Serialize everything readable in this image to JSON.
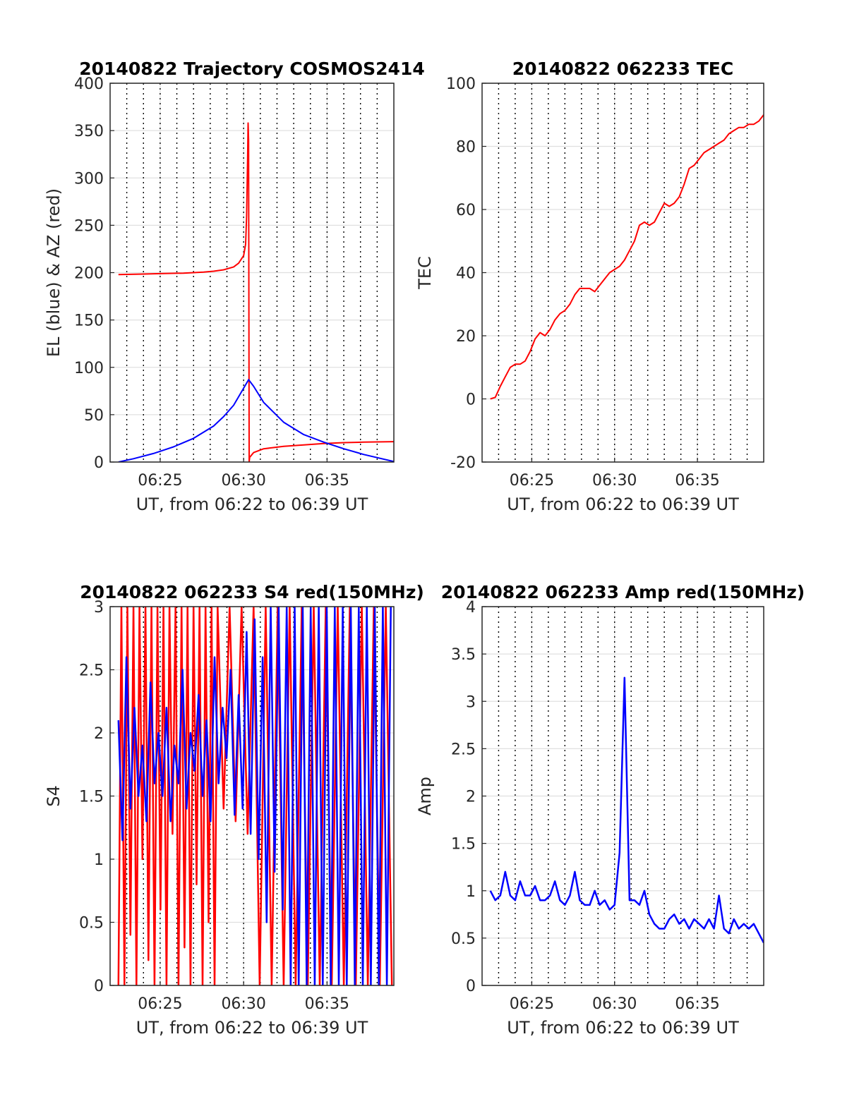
{
  "chart_data": [
    {
      "type": "line",
      "title": "20140822 Trajectory COSMOS2414",
      "xlabel": "UT, from 06:22 to 06:39 UT",
      "ylabel": "EL (blue) & AZ (red)",
      "xlim": [
        6.3667,
        6.65
      ],
      "ylim": [
        0,
        400
      ],
      "xticks": [
        6.4167,
        6.5,
        6.5833
      ],
      "xtick_labels": [
        "06:25",
        "06:30",
        "06:35"
      ],
      "yticks": [
        0,
        50,
        100,
        150,
        200,
        250,
        300,
        350,
        400
      ],
      "ytick_labels": [
        "0",
        "50",
        "100",
        "150",
        "200",
        "250",
        "300",
        "350",
        "400"
      ],
      "grid": true,
      "series": [
        {
          "color": "#ff0000",
          "x": [
            6.375,
            6.4,
            6.42,
            6.44,
            6.46,
            6.47,
            6.48,
            6.49,
            6.495,
            6.5,
            6.502,
            6.503,
            6.504,
            6.5045,
            6.505,
            6.5055,
            6.506,
            6.51,
            6.52,
            6.54,
            6.56,
            6.58,
            6.6,
            6.62,
            6.65
          ],
          "y": [
            198,
            198.5,
            199,
            199.5,
            200.5,
            201.5,
            203,
            206,
            210,
            218,
            230,
            260,
            320,
            358,
            340,
            0,
            5,
            10,
            14,
            16.5,
            18,
            19.5,
            20.5,
            21,
            21.5
          ]
        },
        {
          "color": "#0000ff",
          "x": [
            6.375,
            6.39,
            6.41,
            6.43,
            6.45,
            6.47,
            6.48,
            6.49,
            6.5,
            6.505,
            6.51,
            6.52,
            6.54,
            6.56,
            6.58,
            6.6,
            6.62,
            6.65
          ],
          "y": [
            0,
            3.5,
            9,
            16,
            25,
            38,
            48,
            60,
            78,
            87,
            80,
            63,
            42,
            29,
            21,
            14,
            8,
            0.5
          ]
        }
      ]
    },
    {
      "type": "line",
      "title": "20140822 062233 TEC",
      "xlabel": "UT, from 06:22 to 06:39 UT",
      "ylabel": "TEC",
      "xlim": [
        6.3667,
        6.65
      ],
      "ylim": [
        -20,
        100
      ],
      "xticks": [
        6.4167,
        6.5,
        6.5833
      ],
      "xtick_labels": [
        "06:25",
        "06:30",
        "06:35"
      ],
      "yticks": [
        -20,
        0,
        20,
        40,
        60,
        80,
        100
      ],
      "ytick_labels": [
        "-20",
        "0",
        "20",
        "40",
        "60",
        "80",
        "100"
      ],
      "grid": true,
      "series": [
        {
          "color": "#ff0000",
          "x": [
            6.375,
            6.38,
            6.385,
            6.39,
            6.395,
            6.4,
            6.405,
            6.41,
            6.415,
            6.42,
            6.425,
            6.43,
            6.435,
            6.44,
            6.445,
            6.45,
            6.455,
            6.46,
            6.465,
            6.47,
            6.475,
            6.48,
            6.485,
            6.49,
            6.495,
            6.5,
            6.505,
            6.51,
            6.515,
            6.52,
            6.525,
            6.53,
            6.535,
            6.54,
            6.545,
            6.55,
            6.555,
            6.56,
            6.565,
            6.57,
            6.575,
            6.58,
            6.585,
            6.59,
            6.595,
            6.6,
            6.605,
            6.61,
            6.615,
            6.62,
            6.625,
            6.63,
            6.635,
            6.64,
            6.645,
            6.65
          ],
          "y": [
            0,
            0.5,
            4,
            7,
            10,
            11,
            11,
            12,
            15,
            19,
            21,
            20,
            22,
            25,
            27,
            28,
            30,
            33,
            35,
            35,
            35,
            34,
            36,
            38,
            40,
            41,
            42,
            44,
            47,
            50,
            55,
            56,
            55,
            56,
            59,
            62,
            61,
            62,
            64,
            68,
            73,
            74,
            76,
            78,
            79,
            80,
            81,
            82,
            84,
            85,
            86,
            86,
            87,
            87,
            88,
            90
          ]
        }
      ]
    },
    {
      "type": "line",
      "title": "20140822 062233 S4 red(150MHz)",
      "xlabel": "UT, from 06:22 to 06:39 UT",
      "ylabel": "S4",
      "xlim": [
        6.3667,
        6.65
      ],
      "ylim": [
        0,
        3
      ],
      "xticks": [
        6.4167,
        6.5,
        6.5833
      ],
      "xtick_labels": [
        "06:25",
        "06:30",
        "06:35"
      ],
      "yticks": [
        0,
        0.5,
        1,
        1.5,
        2,
        2.5,
        3
      ],
      "ytick_labels": [
        "0",
        "0.5",
        "1",
        "1.5",
        "2",
        "2.5",
        "3"
      ],
      "grid": true,
      "series": [
        {
          "color": "#ff0000",
          "x": [
            6.375,
            6.378,
            6.381,
            6.384,
            6.387,
            6.39,
            6.393,
            6.396,
            6.399,
            6.402,
            6.405,
            6.408,
            6.411,
            6.414,
            6.417,
            6.42,
            6.423,
            6.426,
            6.429,
            6.432,
            6.435,
            6.438,
            6.441,
            6.444,
            6.447,
            6.45,
            6.453,
            6.456,
            6.459,
            6.462,
            6.465,
            6.468,
            6.471,
            6.474,
            6.48,
            6.486,
            6.492,
            6.498,
            6.504,
            6.51,
            6.516,
            6.522,
            6.528,
            6.534,
            6.54,
            6.546,
            6.552,
            6.558,
            6.564,
            6.57,
            6.576,
            6.582,
            6.588,
            6.594,
            6.6,
            6.606,
            6.612,
            6.618,
            6.624,
            6.63,
            6.636,
            6.642,
            6.648
          ],
          "y": [
            0,
            3,
            0,
            3,
            0.4,
            3,
            0,
            3,
            1,
            3,
            0.2,
            3,
            0,
            3,
            0.6,
            3,
            0,
            3,
            1.2,
            3,
            0,
            3,
            0.3,
            3,
            0,
            3,
            0.8,
            3,
            0,
            3,
            0.5,
            3,
            0,
            3,
            1.4,
            3,
            1.3,
            3,
            1.2,
            3,
            0,
            3,
            0,
            3,
            0,
            3,
            0,
            3,
            0,
            3,
            0,
            3,
            0,
            3,
            0,
            3,
            0,
            3,
            0,
            3,
            0,
            3,
            0
          ]
        },
        {
          "color": "#0000ff",
          "x": [
            6.375,
            6.379,
            6.383,
            6.387,
            6.391,
            6.395,
            6.399,
            6.403,
            6.407,
            6.411,
            6.415,
            6.419,
            6.423,
            6.427,
            6.431,
            6.435,
            6.439,
            6.443,
            6.447,
            6.451,
            6.455,
            6.459,
            6.463,
            6.467,
            6.471,
            6.475,
            6.479,
            6.483,
            6.487,
            6.491,
            6.495,
            6.499,
            6.503,
            6.507,
            6.511,
            6.515,
            6.519,
            6.523,
            6.527,
            6.531,
            6.535,
            6.539,
            6.543,
            6.547,
            6.551,
            6.555,
            6.559,
            6.563,
            6.567,
            6.571,
            6.575,
            6.579,
            6.583,
            6.587,
            6.591,
            6.595,
            6.599,
            6.603,
            6.607,
            6.611,
            6.615,
            6.619,
            6.623,
            6.627,
            6.631,
            6.635,
            6.639,
            6.643,
            6.647
          ],
          "y": [
            2.1,
            1.15,
            2.6,
            1.4,
            2.2,
            1.5,
            1.9,
            1.3,
            2.4,
            1.6,
            2.0,
            1.5,
            2.2,
            1.3,
            1.9,
            1.6,
            2.5,
            1.4,
            2.0,
            1.7,
            2.3,
            1.5,
            2.1,
            1.3,
            2.6,
            1.6,
            2.2,
            1.8,
            2.5,
            1.35,
            2.3,
            1.4,
            2.8,
            1.2,
            2.9,
            1.0,
            2.6,
            0.5,
            3.0,
            0.9,
            3.0,
            0.6,
            3.0,
            0,
            3.0,
            0,
            3.0,
            0,
            3.0,
            0,
            3.0,
            0,
            3.0,
            0,
            3.0,
            0,
            3.0,
            0,
            3.0,
            0,
            3.0,
            0,
            3.0,
            0,
            3.0,
            0,
            3.0,
            0,
            3.0
          ]
        }
      ]
    },
    {
      "type": "line",
      "title": "20140822 062233 Amp red(150MHz)",
      "xlabel": "UT, from 06:22 to 06:39 UT",
      "ylabel": "Amp",
      "xlim": [
        6.3667,
        6.65
      ],
      "ylim": [
        0,
        4
      ],
      "xticks": [
        6.4167,
        6.5,
        6.5833
      ],
      "xtick_labels": [
        "06:25",
        "06:30",
        "06:35"
      ],
      "yticks": [
        0,
        0.5,
        1,
        1.5,
        2,
        2.5,
        3,
        3.5,
        4
      ],
      "ytick_labels": [
        "0",
        "0.5",
        "1",
        "1.5",
        "2",
        "2.5",
        "3",
        "3.5",
        "4"
      ],
      "grid": true,
      "series": [
        {
          "color": "#0000ff",
          "x": [
            6.375,
            6.38,
            6.385,
            6.39,
            6.395,
            6.4,
            6.405,
            6.41,
            6.415,
            6.42,
            6.425,
            6.43,
            6.435,
            6.44,
            6.445,
            6.45,
            6.455,
            6.46,
            6.465,
            6.47,
            6.475,
            6.48,
            6.485,
            6.49,
            6.495,
            6.5,
            6.505,
            6.51,
            6.515,
            6.52,
            6.525,
            6.53,
            6.535,
            6.54,
            6.545,
            6.55,
            6.555,
            6.56,
            6.565,
            6.57,
            6.575,
            6.58,
            6.585,
            6.59,
            6.595,
            6.6,
            6.605,
            6.61,
            6.615,
            6.62,
            6.625,
            6.63,
            6.635,
            6.64,
            6.645,
            6.65
          ],
          "y": [
            1.0,
            0.9,
            0.95,
            1.2,
            0.95,
            0.9,
            1.1,
            0.95,
            0.95,
            1.05,
            0.9,
            0.9,
            0.95,
            1.1,
            0.9,
            0.85,
            0.95,
            1.2,
            0.9,
            0.85,
            0.85,
            1.0,
            0.85,
            0.9,
            0.8,
            0.85,
            1.4,
            3.25,
            0.9,
            0.9,
            0.85,
            1.0,
            0.75,
            0.65,
            0.6,
            0.6,
            0.7,
            0.75,
            0.65,
            0.7,
            0.6,
            0.7,
            0.65,
            0.6,
            0.7,
            0.6,
            0.95,
            0.6,
            0.55,
            0.7,
            0.6,
            0.65,
            0.6,
            0.65,
            0.55,
            0.45
          ]
        }
      ]
    }
  ]
}
